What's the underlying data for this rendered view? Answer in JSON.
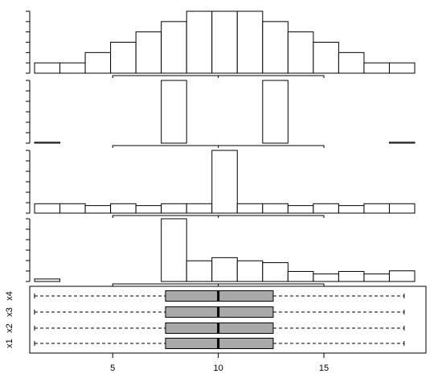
{
  "chart_data": [
    {
      "type": "bar",
      "panel": "histogram-x1",
      "bins": [
        {
          "from": 1.3,
          "to": 2.5,
          "value": 2
        },
        {
          "from": 2.5,
          "to": 3.7,
          "value": 2
        },
        {
          "from": 3.7,
          "to": 4.9,
          "value": 4
        },
        {
          "from": 4.9,
          "to": 6.1,
          "value": 6
        },
        {
          "from": 6.1,
          "to": 7.3,
          "value": 8
        },
        {
          "from": 7.3,
          "to": 8.5,
          "value": 10
        },
        {
          "from": 8.5,
          "to": 9.7,
          "value": 12
        },
        {
          "from": 9.7,
          "to": 10.9,
          "value": 12
        },
        {
          "from": 10.9,
          "to": 12.1,
          "value": 12
        },
        {
          "from": 12.1,
          "to": 13.3,
          "value": 10
        },
        {
          "from": 13.3,
          "to": 14.5,
          "value": 8
        },
        {
          "from": 14.5,
          "to": 15.7,
          "value": 6
        },
        {
          "from": 15.7,
          "to": 16.9,
          "value": 4
        },
        {
          "from": 16.9,
          "to": 18.1,
          "value": 2
        },
        {
          "from": 18.1,
          "to": 19.3,
          "value": 2
        }
      ],
      "ylim": [
        0,
        12
      ]
    },
    {
      "type": "bar",
      "panel": "histogram-x2",
      "bins": [
        {
          "from": 1.3,
          "to": 2.5,
          "value": 0.15
        },
        {
          "from": 2.5,
          "to": 3.7,
          "value": 0
        },
        {
          "from": 3.7,
          "to": 4.9,
          "value": 0
        },
        {
          "from": 4.9,
          "to": 6.1,
          "value": 0
        },
        {
          "from": 6.1,
          "to": 7.3,
          "value": 0
        },
        {
          "from": 7.3,
          "to": 8.5,
          "value": 10
        },
        {
          "from": 8.5,
          "to": 9.7,
          "value": 0
        },
        {
          "from": 9.7,
          "to": 10.9,
          "value": 0
        },
        {
          "from": 10.9,
          "to": 12.1,
          "value": 0
        },
        {
          "from": 12.1,
          "to": 13.3,
          "value": 10
        },
        {
          "from": 13.3,
          "to": 14.5,
          "value": 0
        },
        {
          "from": 14.5,
          "to": 15.7,
          "value": 0
        },
        {
          "from": 15.7,
          "to": 16.9,
          "value": 0
        },
        {
          "from": 16.9,
          "to": 18.1,
          "value": 0
        },
        {
          "from": 18.1,
          "to": 19.3,
          "value": 0.15
        }
      ],
      "ylim": [
        0,
        10
      ]
    },
    {
      "type": "bar",
      "panel": "histogram-x3",
      "bins": [
        {
          "from": 1.3,
          "to": 2.5,
          "value": 1.5
        },
        {
          "from": 2.5,
          "to": 3.7,
          "value": 1.5
        },
        {
          "from": 3.7,
          "to": 4.9,
          "value": 1.2
        },
        {
          "from": 4.9,
          "to": 6.1,
          "value": 1.5
        },
        {
          "from": 6.1,
          "to": 7.3,
          "value": 1.2
        },
        {
          "from": 7.3,
          "to": 8.5,
          "value": 1.5
        },
        {
          "from": 8.5,
          "to": 9.7,
          "value": 1.5
        },
        {
          "from": 9.7,
          "to": 10.9,
          "value": 10
        },
        {
          "from": 10.9,
          "to": 12.1,
          "value": 1.5
        },
        {
          "from": 12.1,
          "to": 13.3,
          "value": 1.5
        },
        {
          "from": 13.3,
          "to": 14.5,
          "value": 1.2
        },
        {
          "from": 14.5,
          "to": 15.7,
          "value": 1.5
        },
        {
          "from": 15.7,
          "to": 16.9,
          "value": 1.2
        },
        {
          "from": 16.9,
          "to": 18.1,
          "value": 1.5
        },
        {
          "from": 18.1,
          "to": 19.3,
          "value": 1.5
        }
      ],
      "ylim": [
        0,
        10
      ]
    },
    {
      "type": "bar",
      "panel": "histogram-x4",
      "bins": [
        {
          "from": 1.3,
          "to": 2.5,
          "value": 0.4
        },
        {
          "from": 2.5,
          "to": 3.7,
          "value": 0
        },
        {
          "from": 3.7,
          "to": 4.9,
          "value": 0
        },
        {
          "from": 4.9,
          "to": 6.1,
          "value": 0
        },
        {
          "from": 6.1,
          "to": 7.3,
          "value": 0
        },
        {
          "from": 7.3,
          "to": 8.5,
          "value": 10
        },
        {
          "from": 8.5,
          "to": 9.7,
          "value": 3.3
        },
        {
          "from": 9.7,
          "to": 10.9,
          "value": 3.8
        },
        {
          "from": 10.9,
          "to": 12.1,
          "value": 3.3
        },
        {
          "from": 12.1,
          "to": 13.3,
          "value": 3.0
        },
        {
          "from": 13.3,
          "to": 14.5,
          "value": 1.6
        },
        {
          "from": 14.5,
          "to": 15.7,
          "value": 1.2
        },
        {
          "from": 15.7,
          "to": 16.9,
          "value": 1.6
        },
        {
          "from": 16.9,
          "to": 18.1,
          "value": 1.2
        },
        {
          "from": 18.1,
          "to": 19.3,
          "value": 1.7
        }
      ],
      "ylim": [
        0,
        10
      ]
    },
    {
      "type": "boxplot",
      "panel": "boxplots",
      "orientation": "horizontal",
      "series": [
        {
          "name": "x1",
          "min": 1.3,
          "q1": 7.5,
          "median": 10,
          "q3": 12.6,
          "max": 18.8
        },
        {
          "name": "x2",
          "min": 1.3,
          "q1": 7.5,
          "median": 10,
          "q3": 12.6,
          "max": 18.8
        },
        {
          "name": "x3",
          "min": 1.3,
          "q1": 7.5,
          "median": 10,
          "q3": 12.6,
          "max": 18.8
        },
        {
          "name": "x4",
          "min": 1.3,
          "q1": 7.5,
          "median": 10,
          "q3": 12.6,
          "max": 18.8
        }
      ],
      "x_ticks": [
        "5",
        "10",
        "15"
      ],
      "xlim": [
        1.3,
        19.3
      ],
      "box_color": "#a9a9a9"
    }
  ]
}
